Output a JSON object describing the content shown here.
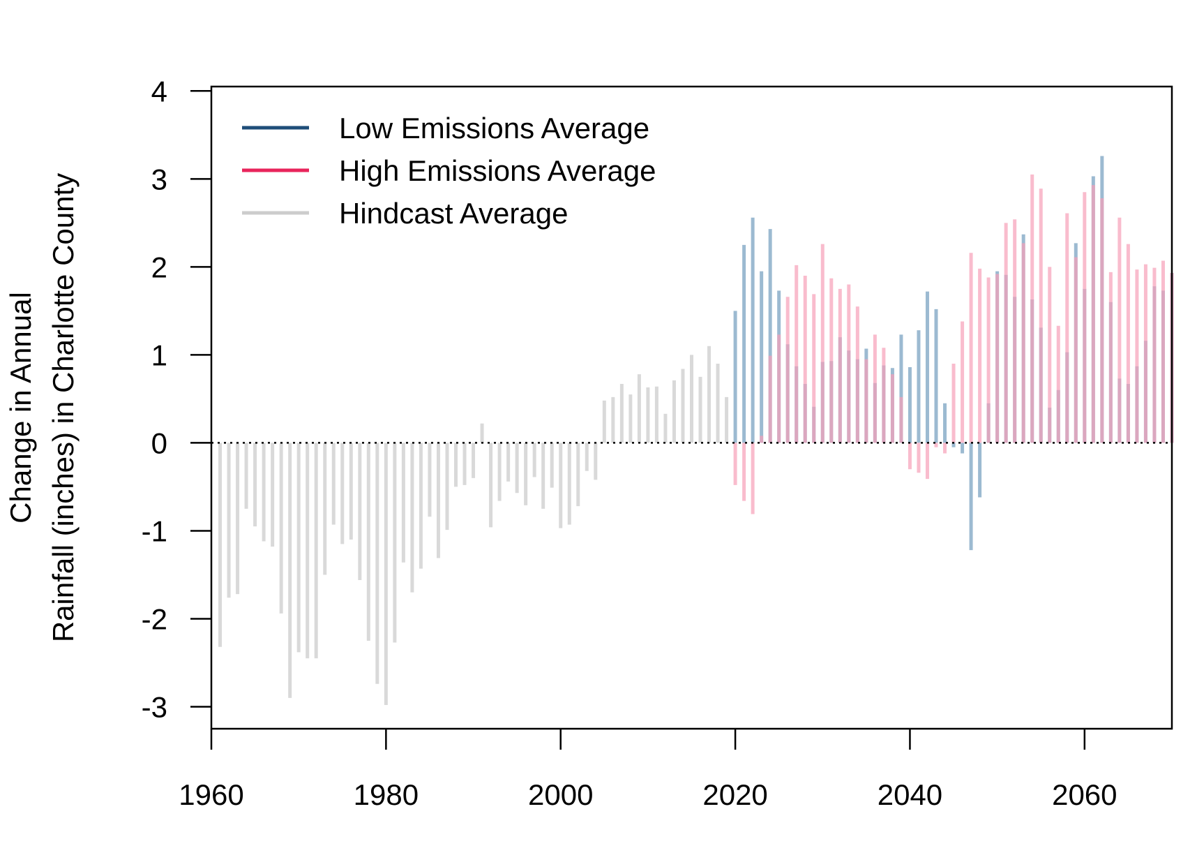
{
  "chart_data": {
    "type": "bar",
    "title": "",
    "xlabel": "",
    "ylabel_lines": [
      "Change in Annual",
      "Rainfall (inches) in Charlotte County"
    ],
    "xlim": [
      1960,
      2070
    ],
    "ylim": [
      -3.25,
      4.05
    ],
    "x_ticks": [
      1960,
      1980,
      2000,
      2020,
      2040,
      2060
    ],
    "y_ticks": [
      -3,
      -2,
      -1,
      0,
      1,
      2,
      3,
      4
    ],
    "x_tick_labels": [
      "1960",
      "1980",
      "2000",
      "2020",
      "2040",
      "2060"
    ],
    "y_tick_labels": [
      "-3",
      "-2",
      "-1",
      "0",
      "1",
      "2",
      "3",
      "4"
    ],
    "reference_line": {
      "y": 0,
      "style": "dotted"
    },
    "legend": {
      "placement": "top-left",
      "entries": [
        {
          "label": "Low Emissions Average",
          "color": "#1f4e79"
        },
        {
          "label": "High Emissions Average",
          "color": "#e8245b"
        },
        {
          "label": "Hindcast Average",
          "color": "#cccccc"
        }
      ]
    },
    "series": [
      {
        "name": "Hindcast Average",
        "color": "#cccccc",
        "x": [
          1961,
          1962,
          1963,
          1964,
          1965,
          1966,
          1967,
          1968,
          1969,
          1970,
          1971,
          1972,
          1973,
          1974,
          1975,
          1976,
          1977,
          1978,
          1979,
          1980,
          1981,
          1982,
          1983,
          1984,
          1985,
          1986,
          1987,
          1988,
          1989,
          1990,
          1991,
          1992,
          1993,
          1994,
          1995,
          1996,
          1997,
          1998,
          1999,
          2000,
          2001,
          2002,
          2003,
          2004,
          2005,
          2006,
          2007,
          2008,
          2009,
          2010,
          2011,
          2012,
          2013,
          2014,
          2015,
          2016,
          2017,
          2018,
          2019
        ],
        "values": [
          -2.32,
          -1.76,
          -1.72,
          -0.75,
          -0.95,
          -1.12,
          -1.18,
          -1.94,
          -2.9,
          -2.38,
          -2.45,
          -2.45,
          -1.5,
          -0.93,
          -1.15,
          -1.1,
          -1.56,
          -2.25,
          -2.74,
          -2.98,
          -2.27,
          -1.36,
          -1.7,
          -1.43,
          -0.84,
          -1.31,
          -0.99,
          -0.5,
          -0.48,
          -0.4,
          0.22,
          -0.96,
          -0.66,
          -0.44,
          -0.57,
          -0.71,
          -0.39,
          -0.75,
          -0.51,
          -0.97,
          -0.93,
          -0.72,
          -0.32,
          -0.42,
          0.48,
          0.52,
          0.67,
          0.55,
          0.78,
          0.63,
          0.64,
          0.33,
          0.71,
          0.84,
          1.0,
          0.75,
          1.1,
          0.9,
          0.52
        ]
      },
      {
        "name": "Low Emissions Average",
        "color": "#7ba3c2",
        "x": [
          2020,
          2021,
          2022,
          2023,
          2024,
          2025,
          2026,
          2027,
          2028,
          2029,
          2030,
          2031,
          2032,
          2033,
          2034,
          2035,
          2036,
          2037,
          2038,
          2039,
          2040,
          2041,
          2042,
          2043,
          2044,
          2045,
          2046,
          2047,
          2048,
          2049,
          2050,
          2051,
          2052,
          2053,
          2054,
          2055,
          2056,
          2057,
          2058,
          2059,
          2060,
          2061,
          2062,
          2063,
          2064,
          2065,
          2066,
          2067,
          2068,
          2069,
          2070
        ],
        "values": [
          1.5,
          2.25,
          2.56,
          1.95,
          2.43,
          1.73,
          1.12,
          0.87,
          0.67,
          0.41,
          0.92,
          0.93,
          1.2,
          1.05,
          0.95,
          1.07,
          0.68,
          0.88,
          0.85,
          1.23,
          0.86,
          1.28,
          1.72,
          1.52,
          0.45,
          -0.05,
          -0.12,
          -1.22,
          -0.62,
          0.45,
          1.95,
          1.91,
          1.66,
          2.37,
          1.63,
          1.31,
          0.4,
          0.6,
          1.03,
          2.27,
          1.75,
          3.03,
          3.26,
          1.6,
          0.73,
          0.67,
          0.87,
          1.16,
          1.78,
          1.73,
          1.93
        ]
      },
      {
        "name": "High Emissions Average",
        "color": "#f7a0b8",
        "x": [
          2020,
          2021,
          2022,
          2023,
          2024,
          2025,
          2026,
          2027,
          2028,
          2029,
          2030,
          2031,
          2032,
          2033,
          2034,
          2035,
          2036,
          2037,
          2038,
          2039,
          2040,
          2041,
          2042,
          2043,
          2044,
          2045,
          2046,
          2047,
          2048,
          2049,
          2050,
          2051,
          2052,
          2053,
          2054,
          2055,
          2056,
          2057,
          2058,
          2059,
          2060,
          2061,
          2062,
          2063,
          2064,
          2065,
          2066,
          2067,
          2068,
          2069,
          2070
        ],
        "values": [
          -0.48,
          -0.66,
          -0.81,
          0.08,
          0.99,
          1.23,
          1.66,
          2.02,
          1.9,
          1.69,
          2.26,
          1.87,
          1.75,
          1.8,
          1.55,
          0.95,
          1.23,
          1.08,
          0.78,
          0.52,
          -0.3,
          -0.34,
          -0.41,
          -0.05,
          -0.12,
          0.9,
          1.38,
          2.16,
          1.98,
          1.88,
          1.92,
          2.5,
          2.54,
          2.27,
          3.05,
          2.89,
          2.0,
          1.33,
          2.61,
          2.11,
          2.85,
          2.93,
          2.78,
          1.94,
          2.56,
          2.26,
          1.97,
          2.03,
          1.99,
          2.07,
          1.93
        ]
      }
    ]
  }
}
